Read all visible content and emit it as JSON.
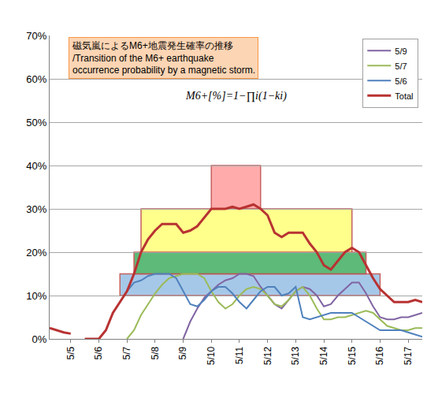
{
  "chart_data": {
    "type": "line",
    "title": "磁気嵐によるM6+地震発生確率の推移\n/Transition of the M6+ earthquake\noccurrence probability by a magnetic storm.",
    "annotations": [
      "M6+[%]=1−∏i(1−ki)"
    ],
    "categories": [
      null,
      null,
      null,
      "5/5",
      null,
      null,
      null,
      "5/6",
      null,
      null,
      null,
      "5/7",
      null,
      null,
      null,
      "5/8",
      null,
      null,
      null,
      "5/9",
      null,
      null,
      null,
      "5/10",
      null,
      null,
      null,
      "5/11",
      null,
      null,
      null,
      "5/12",
      null,
      null,
      null,
      "5/13",
      null,
      null,
      null,
      "5/14",
      null,
      null,
      null,
      "5/15",
      null,
      null,
      null,
      "5/16",
      null,
      null,
      null,
      "5/17",
      null,
      null
    ],
    "series": [
      {
        "name": "5/9",
        "color": "#8064a2",
        "values": [
          null,
          null,
          null,
          null,
          null,
          null,
          null,
          null,
          null,
          null,
          null,
          null,
          null,
          null,
          null,
          null,
          null,
          null,
          null,
          0,
          4,
          7,
          9.5,
          11,
          12.5,
          13.5,
          14,
          15,
          15,
          14.5,
          12,
          10,
          8,
          7,
          9,
          11,
          12,
          11.5,
          10,
          7.5,
          8,
          10,
          11.5,
          13,
          13,
          10.5,
          7.5,
          5,
          4.5,
          4.5,
          5,
          5,
          5.5,
          6
        ]
      },
      {
        "name": "5/7",
        "color": "#9bbb59",
        "values": [
          null,
          null,
          null,
          null,
          null,
          null,
          null,
          null,
          null,
          null,
          null,
          0,
          2,
          5.5,
          8,
          10.5,
          12.5,
          14,
          14.5,
          15,
          15,
          15,
          14,
          11,
          8.5,
          7,
          8,
          10,
          11.5,
          12,
          11.5,
          10,
          8,
          7.5,
          9,
          11,
          12,
          10,
          7,
          4.5,
          4.5,
          5,
          5,
          5.5,
          6,
          6.5,
          6,
          4.5,
          3,
          2.5,
          2,
          2,
          2.5,
          2.5
        ]
      },
      {
        "name": "5/6",
        "color": "#4f81bd",
        "values": [
          null,
          null,
          null,
          null,
          null,
          null,
          null,
          null,
          null,
          null,
          8.5,
          11,
          13,
          13.5,
          14.5,
          15,
          15,
          15,
          14,
          11,
          8,
          7.5,
          9,
          11,
          12,
          12,
          10.5,
          8.5,
          7,
          9,
          11,
          12,
          12,
          10,
          10.5,
          12,
          5,
          4.5,
          5,
          5.5,
          6,
          6,
          6,
          6,
          5,
          4,
          3,
          2,
          2,
          2,
          2,
          1.5,
          1,
          0.5
        ]
      },
      {
        "name": "Total",
        "color": "#b83232",
        "values": [
          2.5,
          2,
          1.5,
          1.2,
          null,
          0,
          0,
          0,
          2,
          6,
          8.5,
          11,
          15,
          20,
          23,
          25,
          26.5,
          26.5,
          26.5,
          24.5,
          25,
          26,
          28,
          30,
          30,
          30,
          30.5,
          30,
          30.5,
          31,
          30,
          28.5,
          24.5,
          23.5,
          24.5,
          24.5,
          24.5,
          22,
          20,
          17,
          16,
          18,
          20,
          21,
          20,
          17,
          14,
          11.5,
          10,
          8.5,
          8.5,
          8.5,
          9,
          8.5
        ]
      }
    ],
    "bands": [
      {
        "x0": 10,
        "x1": 47,
        "y0": 10,
        "y1": 15,
        "color": "#9dc3e6"
      },
      {
        "x0": 12,
        "x1": 45,
        "y0": 15,
        "y1": 20,
        "color": "#4cb36a"
      },
      {
        "x0": 13,
        "x1": 43,
        "y0": 20,
        "y1": 30,
        "color": "#ffff80"
      },
      {
        "x0": 23,
        "x1": 30,
        "y0": 30,
        "y1": 40,
        "color": "#ffa3a3"
      }
    ],
    "ylim": [
      0,
      70
    ],
    "yticks": [
      {
        "value": 0,
        "label": "0%"
      },
      {
        "value": 10,
        "label": "10%"
      },
      {
        "value": 20,
        "label": "20%"
      },
      {
        "value": 30,
        "label": "30%"
      },
      {
        "value": 40,
        "label": "40%"
      },
      {
        "value": 50,
        "label": "50%"
      },
      {
        "value": 60,
        "label": "60%"
      },
      {
        "value": 70,
        "label": "70%"
      }
    ],
    "grid": true,
    "legend": "top right"
  }
}
